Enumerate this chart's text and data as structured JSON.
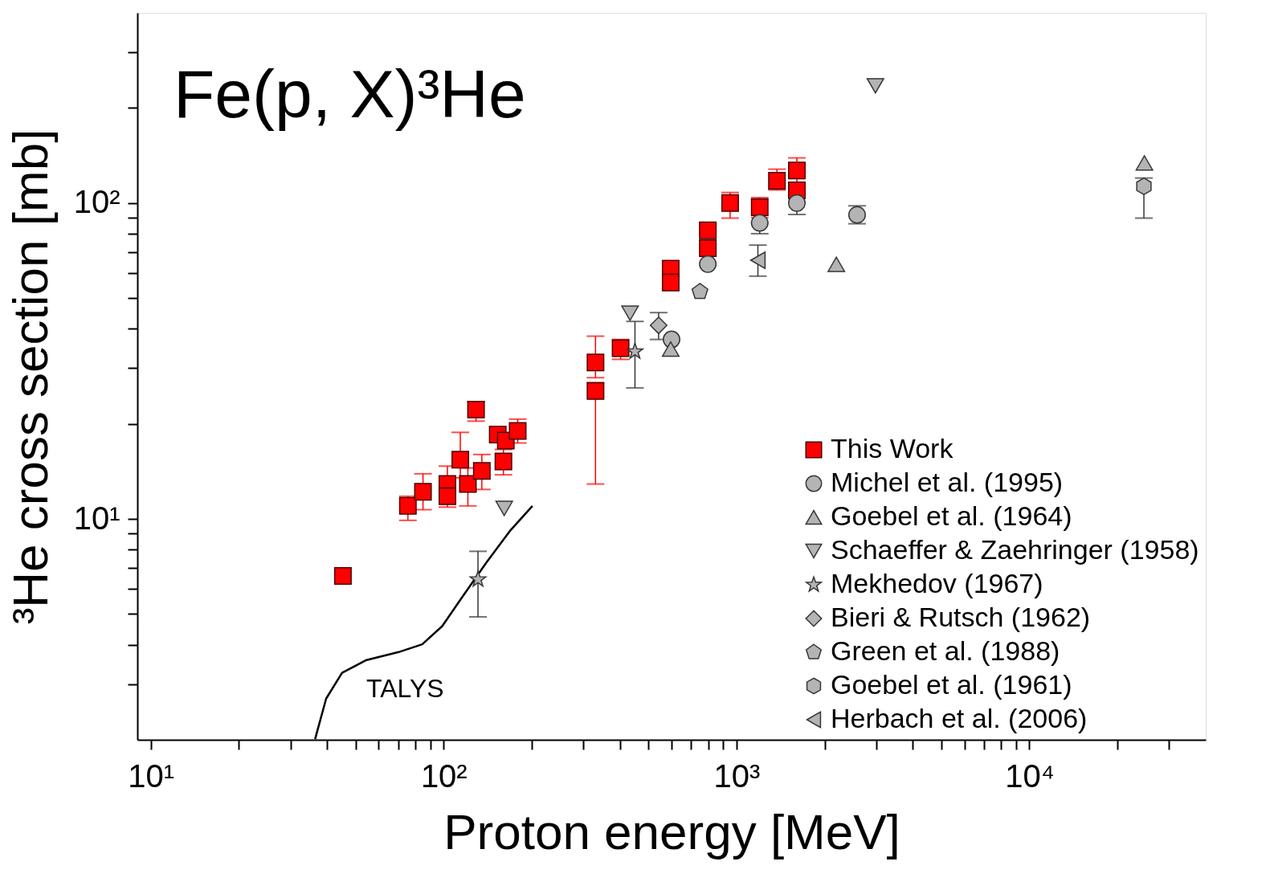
{
  "chart_data": {
    "type": "scatter",
    "title": "Fe(p, X)³He",
    "xlabel": "Proton energy [MeV]",
    "ylabel": "³He cross section [mb]",
    "log": "xy",
    "grid": false,
    "legend": "bottom right",
    "xlim": [
      9,
      40000
    ],
    "ylim": [
      2,
      400
    ],
    "xticks": [
      {
        "value": 10,
        "label": "10¹"
      },
      {
        "value": 20,
        "label": null
      },
      {
        "value": 30,
        "label": null
      },
      {
        "value": 40,
        "label": null
      },
      {
        "value": 50,
        "label": null
      },
      {
        "value": 60,
        "label": null
      },
      {
        "value": 70,
        "label": null
      },
      {
        "value": 80,
        "label": null
      },
      {
        "value": 90,
        "label": null
      },
      {
        "value": 100,
        "label": "10²"
      },
      {
        "value": 200,
        "label": null
      },
      {
        "value": 300,
        "label": null
      },
      {
        "value": 400,
        "label": null
      },
      {
        "value": 500,
        "label": null
      },
      {
        "value": 600,
        "label": null
      },
      {
        "value": 700,
        "label": null
      },
      {
        "value": 800,
        "label": null
      },
      {
        "value": 900,
        "label": null
      },
      {
        "value": 1000,
        "label": "10³"
      },
      {
        "value": 2000,
        "label": null
      },
      {
        "value": 3000,
        "label": null
      },
      {
        "value": 4000,
        "label": null
      },
      {
        "value": 5000,
        "label": null
      },
      {
        "value": 6000,
        "label": null
      },
      {
        "value": 7000,
        "label": null
      },
      {
        "value": 8000,
        "label": null
      },
      {
        "value": 9000,
        "label": null
      },
      {
        "value": 10000,
        "label": "10⁴"
      },
      {
        "value": 20000,
        "label": null
      },
      {
        "value": 30000,
        "label": null
      }
    ],
    "yticks": [
      {
        "value": 3,
        "label": null
      },
      {
        "value": 4,
        "label": null
      },
      {
        "value": 5,
        "label": null
      },
      {
        "value": 6,
        "label": null
      },
      {
        "value": 7,
        "label": null
      },
      {
        "value": 8,
        "label": null
      },
      {
        "value": 9,
        "label": null
      },
      {
        "value": 10,
        "label": "10¹"
      },
      {
        "value": 20,
        "label": null
      },
      {
        "value": 30,
        "label": null
      },
      {
        "value": 40,
        "label": null
      },
      {
        "value": 50,
        "label": null
      },
      {
        "value": 60,
        "label": null
      },
      {
        "value": 70,
        "label": null
      },
      {
        "value": 80,
        "label": null
      },
      {
        "value": 90,
        "label": null
      },
      {
        "value": 100,
        "label": "10²"
      },
      {
        "value": 200,
        "label": null
      },
      {
        "value": 300,
        "label": null
      }
    ],
    "annotations": [
      "TALYS"
    ],
    "series": [
      {
        "name": "This Work",
        "marker": "square",
        "color": "#ff0000",
        "x": [
          45.3,
          75.5,
          85,
          103,
          103,
          114,
          121,
          135,
          129,
          153,
          163,
          179,
          160,
          330,
          330,
          402,
          596,
          596,
          798,
          798,
          951,
          1200,
          1374,
          1607,
          1607
        ],
        "values": [
          6.6,
          11.0,
          12.2,
          12.9,
          11.8,
          15.4,
          12.9,
          14.2,
          22.2,
          18.5,
          17.7,
          19.0,
          15.2,
          25.4,
          31.3,
          34.7,
          62,
          56,
          82,
          72,
          100,
          97,
          117.6,
          126.8,
          109.7
        ],
        "errors": [
          null,
          [
            9.9,
            11.8
          ],
          [
            10.7,
            13.9
          ],
          [
            10.9,
            14.7
          ],
          null,
          [
            13.5,
            18.8
          ],
          [
            11.0,
            14.5
          ],
          [
            12.4,
            16.0
          ],
          [
            20.4,
            23.5
          ],
          null,
          null,
          [
            17.4,
            20.7
          ],
          [
            13.8,
            16.6
          ],
          [
            12.9,
            27
          ],
          [
            28,
            37.9
          ],
          [
            32,
            37
          ],
          null,
          null,
          null,
          null,
          [
            89.6,
            108
          ],
          [
            90,
            104
          ],
          [
            110,
            128
          ],
          null,
          [
            109.7,
            139
          ]
        ]
      },
      {
        "name": "Michel et al. (1995)",
        "marker": "circle",
        "color": "#b4b4b4",
        "x": [
          600,
          798,
          1200,
          1607,
          2580
        ],
        "values": [
          37,
          64.1,
          86.5,
          100,
          91.7
        ],
        "errors": [
          null,
          null,
          [
            80,
            86.5
          ],
          [
            92,
            108
          ],
          [
            86,
            98
          ]
        ]
      },
      {
        "name": "Goebel et al. (1964)",
        "marker": "triangle",
        "color": "#b4b4b4",
        "x": [
          596,
          2192,
          24700
        ],
        "values": [
          34.5,
          64,
          134
        ],
        "errors": [
          null,
          null,
          null
        ]
      },
      {
        "name": "Schaeffer & Zaehringer (1958)",
        "marker": "triangle-down",
        "color": "#b4b4b4",
        "x": [
          161,
          433,
          2980
        ],
        "values": [
          10.8,
          44.8,
          235
        ],
        "errors": [
          null,
          null,
          null
        ]
      },
      {
        "name": "Mekhedov (1967)",
        "marker": "star",
        "color": "#b4b4b4",
        "x": [
          131,
          450
        ],
        "values": [
          6.44,
          33.9
        ],
        "errors": [
          [
            4.9,
            7.9
          ],
          [
            26,
            42.2
          ]
        ]
      },
      {
        "name": "Bieri & Rutsch (1962)",
        "marker": "diamond",
        "color": "#b4b4b4",
        "x": [
          542
        ],
        "values": [
          41
        ],
        "errors": [
          [
            37,
            45
          ]
        ]
      },
      {
        "name": "Green et al. (1988)",
        "color": "#b4b4b4",
        "x": [
          750
        ],
        "values": [
          52.4
        ],
        "errors": [
          null
        ]
      },
      {
        "name": "Goebel et al. (1961)",
        "color": "#b4b4b4",
        "x": [
          24600
        ],
        "values": [
          113
        ],
        "errors": [
          [
            89.6,
            120
          ]
        ]
      },
      {
        "name": "Herbach et al. (2006)",
        "marker": "triangle-left",
        "color": "#b4b4b4",
        "x": [
          1183
        ],
        "values": [
          65.9
        ],
        "errors": [
          [
            58.7,
            73.6
          ]
        ]
      },
      {
        "type": "line",
        "color": "#000000",
        "x": [
          36.4,
          39.7,
          45.0,
          54.2,
          70.2,
          84.5,
          98.9,
          115,
          140,
          169,
          201
        ],
        "values": [
          2.01,
          2.7,
          3.26,
          3.57,
          3.79,
          4.01,
          4.58,
          5.61,
          7.28,
          9.2,
          11.0
        ]
      }
    ]
  }
}
